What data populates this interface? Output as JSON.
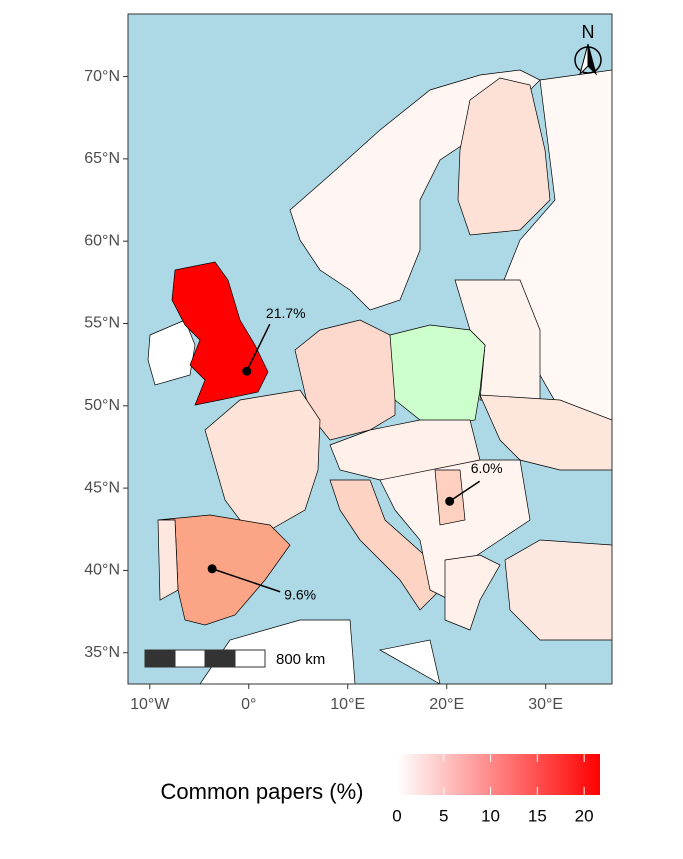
{
  "chart_data": {
    "type": "map",
    "xlim": [
      -12.2,
      36.7
    ],
    "ylim": [
      33.1,
      73.8
    ],
    "xticks": [
      {
        "value": -10,
        "label": "10°W"
      },
      {
        "value": 0,
        "label": "0°"
      },
      {
        "value": 10,
        "label": "10°E"
      },
      {
        "value": 20,
        "label": "20°E"
      },
      {
        "value": 30,
        "label": "30°E"
      }
    ],
    "yticks": [
      {
        "value": 35,
        "label": "35°N"
      },
      {
        "value": 40,
        "label": "40°N"
      },
      {
        "value": 45,
        "label": "45°N"
      },
      {
        "value": 50,
        "label": "50°N"
      },
      {
        "value": 55,
        "label": "55°N"
      },
      {
        "value": 60,
        "label": "60°N"
      },
      {
        "value": 65,
        "label": "65°N"
      },
      {
        "value": 70,
        "label": "70°N"
      }
    ],
    "points": {
      "x": [
        -0.2,
        -3.7,
        20.3
      ],
      "y": [
        52.1,
        40.1,
        44.2
      ],
      "values": [
        21.7,
        9.6,
        6.0
      ],
      "value_labels": [
        "21.7%",
        "9.6%",
        "6.0%"
      ]
    },
    "colorbar": {
      "title": "Common papers (%)",
      "lim": [
        0,
        21.7
      ],
      "ticks": [
        0,
        5,
        10,
        15,
        20
      ],
      "colors": [
        "#ffffff",
        "#ff0000"
      ]
    },
    "scale_bar": "800 km",
    "north": "N"
  }
}
